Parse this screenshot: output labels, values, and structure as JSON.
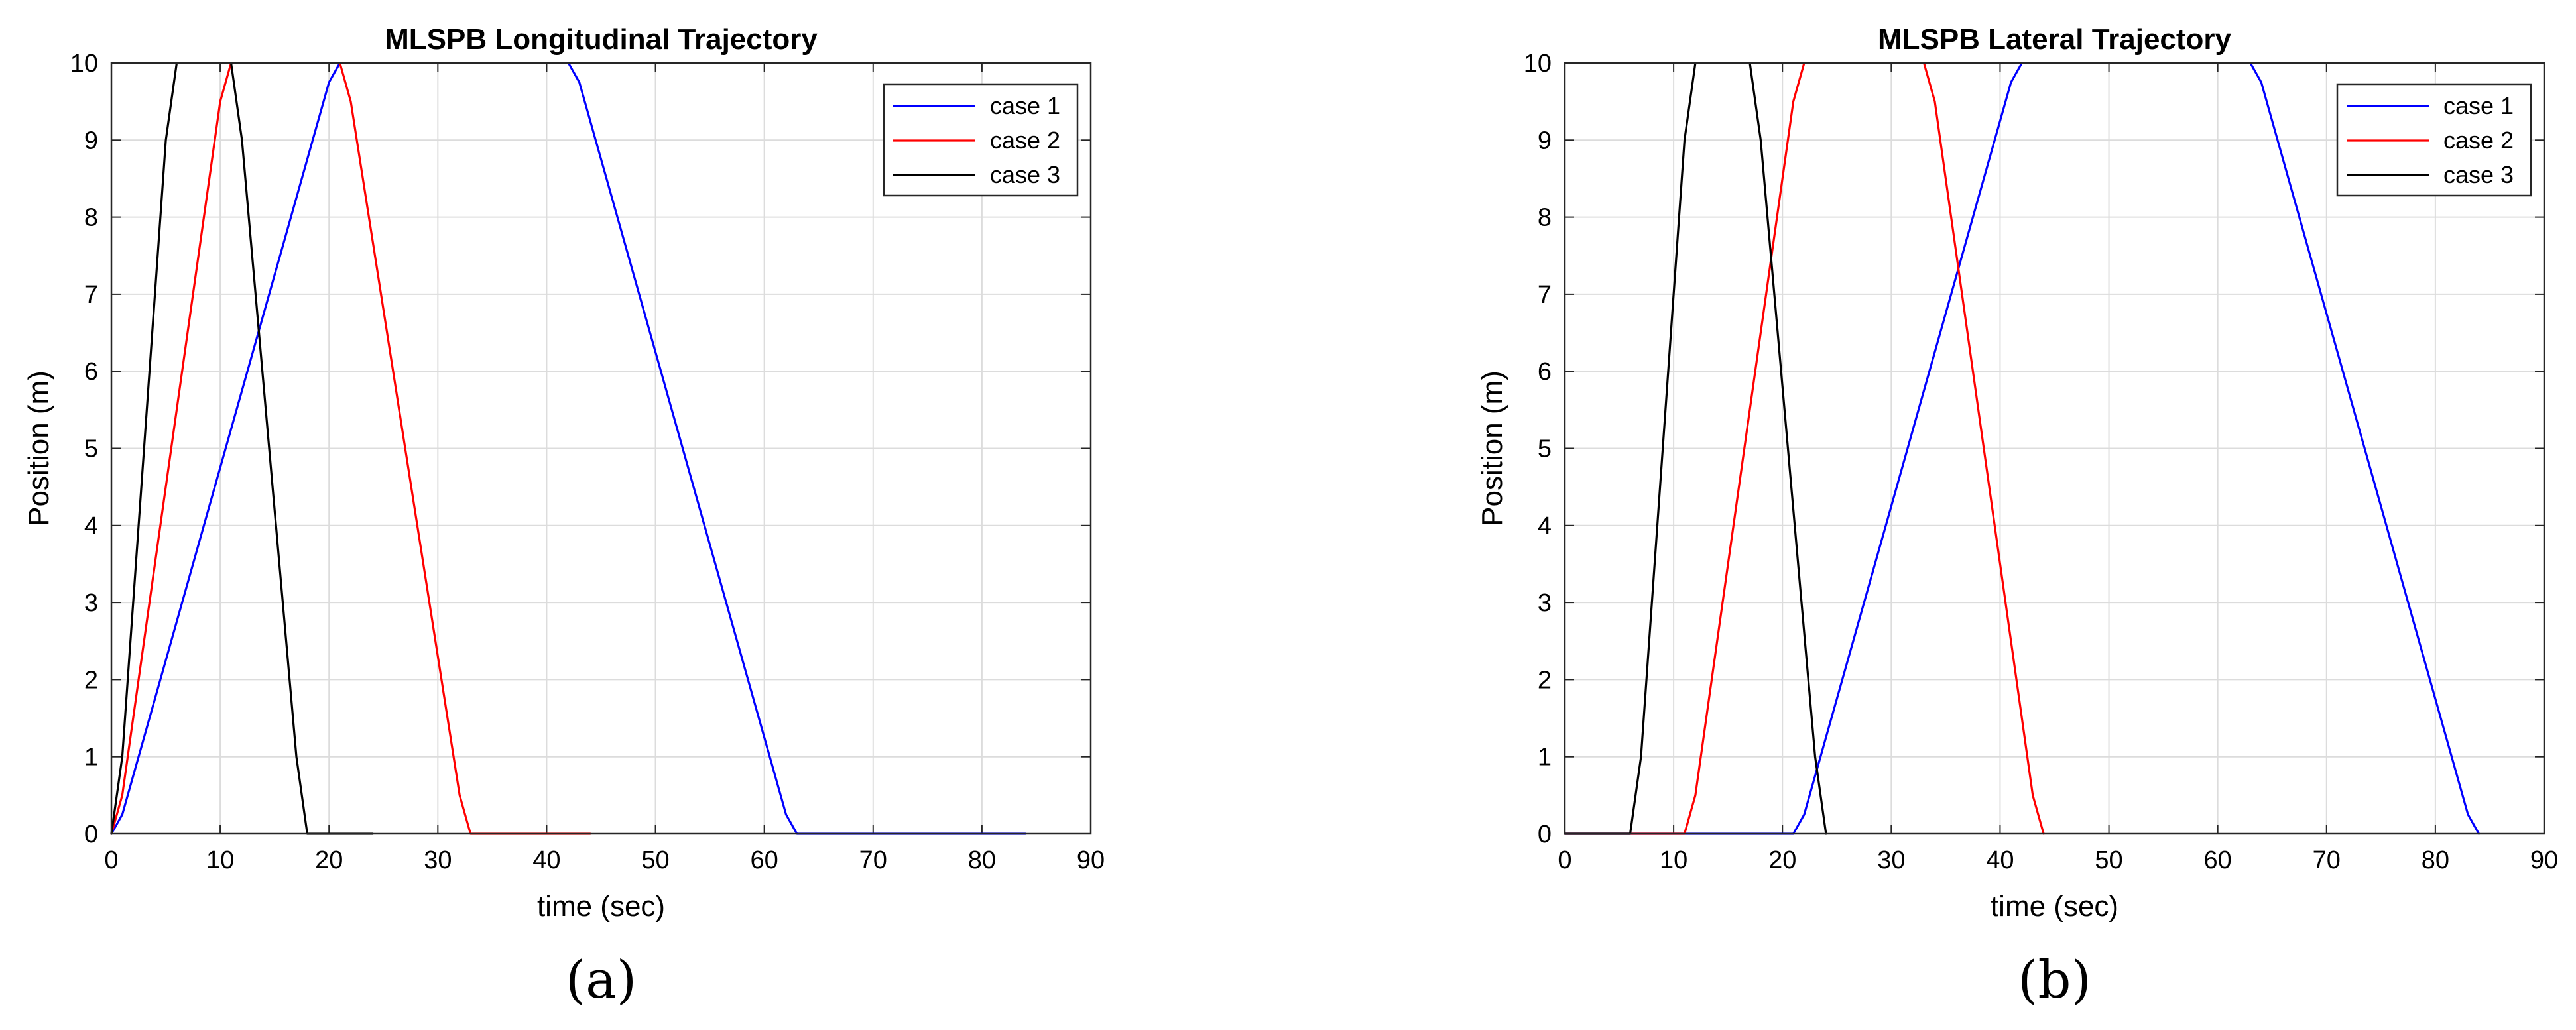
{
  "chart_data": [
    {
      "type": "line",
      "panel_label": "(a)",
      "title": "MLSPB Longitudinal Trajectory",
      "xlabel": "time (sec)",
      "ylabel": "Position (m)",
      "xlim": [
        0,
        90
      ],
      "ylim": [
        0,
        10
      ],
      "xticks": [
        "0",
        "10",
        "20",
        "30",
        "40",
        "50",
        "60",
        "70",
        "80",
        "90"
      ],
      "yticks": [
        "0",
        "1",
        "2",
        "3",
        "4",
        "5",
        "6",
        "7",
        "8",
        "9",
        "10"
      ],
      "grid": true,
      "legend_position": "top-right",
      "series": [
        {
          "name": "case 1",
          "color": "#0000ff",
          "x": [
            0,
            1,
            20,
            21,
            42,
            43,
            62,
            63,
            84
          ],
          "y": [
            0,
            0.25,
            9.75,
            10,
            10,
            9.75,
            0.25,
            0,
            0
          ]
        },
        {
          "name": "case 2",
          "color": "#ff0000",
          "x": [
            0,
            1,
            10,
            11,
            21,
            22,
            32,
            33,
            44
          ],
          "y": [
            0,
            0.5,
            9.5,
            10,
            10,
            9.5,
            0.5,
            0,
            0
          ]
        },
        {
          "name": "case 3",
          "color": "#000000",
          "x": [
            0,
            1,
            5,
            6,
            11,
            12,
            17,
            18,
            24
          ],
          "y": [
            0,
            1,
            9,
            10,
            10,
            9,
            1,
            0,
            0
          ]
        }
      ]
    },
    {
      "type": "line",
      "panel_label": "(b)",
      "title": "MLSPB Lateral Trajectory",
      "xlabel": "time (sec)",
      "ylabel": "Position (m)",
      "xlim": [
        0,
        90
      ],
      "ylim": [
        0,
        10
      ],
      "xticks": [
        "0",
        "10",
        "20",
        "30",
        "40",
        "50",
        "60",
        "70",
        "80",
        "90"
      ],
      "yticks": [
        "0",
        "1",
        "2",
        "3",
        "4",
        "5",
        "6",
        "7",
        "8",
        "9",
        "10"
      ],
      "grid": true,
      "legend_position": "top-right",
      "series": [
        {
          "name": "case 1",
          "color": "#0000ff",
          "x": [
            0,
            20,
            21,
            22,
            41,
            42,
            63,
            64,
            83,
            84
          ],
          "y": [
            0,
            0,
            0,
            0.25,
            9.75,
            10,
            10,
            9.75,
            0.25,
            0
          ]
        },
        {
          "name": "case 2",
          "color": "#ff0000",
          "x": [
            0,
            11,
            12,
            21,
            22,
            33,
            34,
            43,
            44
          ],
          "y": [
            0,
            0,
            0.5,
            9.5,
            10,
            10,
            9.5,
            0.5,
            0
          ]
        },
        {
          "name": "case 3",
          "color": "#000000",
          "x": [
            0,
            6,
            7,
            11,
            12,
            17,
            18,
            23,
            24
          ],
          "y": [
            0,
            0,
            1,
            9,
            10,
            10,
            9,
            1,
            0
          ]
        }
      ]
    }
  ]
}
